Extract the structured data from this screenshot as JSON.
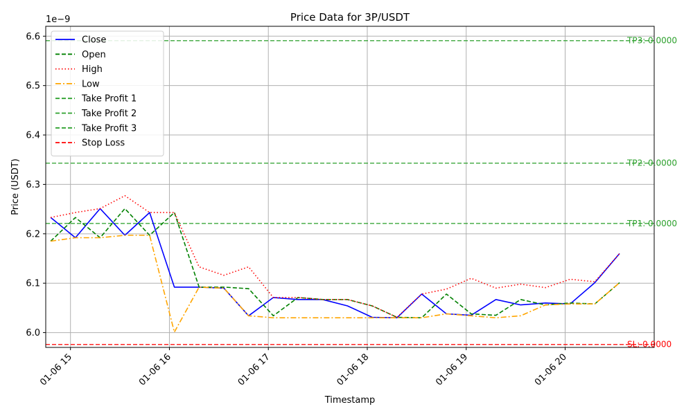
{
  "chart_data": {
    "type": "line",
    "title": "Price Data for 3P/USDT",
    "xlabel": "Timestamp",
    "ylabel": "Price (USDT)",
    "y_offset_label": "1e−9",
    "y_scale_exponent": -9,
    "ylim": [
      5.97,
      6.62
    ],
    "xlim": [
      "01-06 14:45",
      "01-06 20:54"
    ],
    "grid": true,
    "legend_position": "upper-left",
    "x_tick_labels": [
      "01-06 15",
      "01-06 16",
      "01-06 17",
      "01-06 18",
      "01-06 19",
      "01-06 20"
    ],
    "y_ticks": [
      6.0,
      6.1,
      6.2,
      6.3,
      6.4,
      6.5,
      6.6
    ],
    "y_tick_labels": [
      "6.0",
      "6.1",
      "6.2",
      "6.3",
      "6.4",
      "6.5",
      "6.6"
    ],
    "x": [
      "01-06 14:48",
      "01-06 15:03",
      "01-06 15:18",
      "01-06 15:33",
      "01-06 15:48",
      "01-06 16:03",
      "01-06 16:18",
      "01-06 16:33",
      "01-06 16:48",
      "01-06 17:03",
      "01-06 17:18",
      "01-06 17:33",
      "01-06 17:48",
      "01-06 18:03",
      "01-06 18:18",
      "01-06 18:33",
      "01-06 18:48",
      "01-06 19:03",
      "01-06 19:18",
      "01-06 19:33",
      "01-06 19:48",
      "01-06 20:03",
      "01-06 20:18",
      "01-06 20:33"
    ],
    "series": [
      {
        "name": "Close",
        "color": "#0000ff",
        "dash": "solid",
        "values": [
          6.233,
          6.192,
          6.251,
          6.197,
          6.243,
          6.092,
          6.092,
          6.09,
          6.034,
          6.071,
          6.067,
          6.067,
          6.054,
          6.031,
          6.03,
          6.078,
          6.038,
          6.035,
          6.067,
          6.056,
          6.06,
          6.058,
          6.101,
          6.16
        ]
      },
      {
        "name": "Open",
        "color": "#008000",
        "dash": "dashed",
        "values": [
          6.185,
          6.233,
          6.192,
          6.251,
          6.197,
          6.243,
          6.092,
          6.092,
          6.089,
          6.034,
          6.071,
          6.067,
          6.067,
          6.054,
          6.031,
          6.03,
          6.078,
          6.038,
          6.035,
          6.067,
          6.056,
          6.06,
          6.058,
          6.101
        ]
      },
      {
        "name": "High",
        "color": "#ff0000",
        "dash": "dotted",
        "values": [
          6.233,
          6.243,
          6.251,
          6.277,
          6.243,
          6.243,
          6.133,
          6.116,
          6.133,
          6.071,
          6.071,
          6.067,
          6.067,
          6.054,
          6.031,
          6.078,
          6.088,
          6.11,
          6.09,
          6.098,
          6.091,
          6.108,
          6.103,
          6.16
        ]
      },
      {
        "name": "Low",
        "color": "#ffa500",
        "dash": "dashdot",
        "values": [
          6.185,
          6.192,
          6.192,
          6.197,
          6.197,
          6.001,
          6.092,
          6.09,
          6.034,
          6.03,
          6.03,
          6.03,
          6.03,
          6.03,
          6.03,
          6.03,
          6.038,
          6.034,
          6.03,
          6.034,
          6.056,
          6.058,
          6.058,
          6.101
        ]
      }
    ],
    "hlines": [
      {
        "name": "Take Profit 1",
        "value": 6.221,
        "color": "#2ca02c",
        "label": "TP1: 0.0000"
      },
      {
        "name": "Take Profit 2",
        "value": 6.343,
        "color": "#2ca02c",
        "label": "TP2: 0.0000"
      },
      {
        "name": "Take Profit 3",
        "value": 6.591,
        "color": "#2ca02c",
        "label": "TP3: 0.0000"
      },
      {
        "name": "Stop Loss",
        "value": 5.976,
        "color": "#ff0000",
        "label": "SL: 0.0000"
      }
    ],
    "legend": [
      {
        "label": "Close",
        "color": "#0000ff",
        "dash": "solid"
      },
      {
        "label": "Open",
        "color": "#008000",
        "dash": "dashed"
      },
      {
        "label": "High",
        "color": "#ff0000",
        "dash": "dotted"
      },
      {
        "label": "Low",
        "color": "#ffa500",
        "dash": "dashdot"
      },
      {
        "label": "Take Profit 1",
        "color": "#2ca02c",
        "dash": "dashed"
      },
      {
        "label": "Take Profit 2",
        "color": "#2ca02c",
        "dash": "dashed"
      },
      {
        "label": "Take Profit 3",
        "color": "#2ca02c",
        "dash": "dashed"
      },
      {
        "label": "Stop Loss",
        "color": "#ff0000",
        "dash": "dashed"
      }
    ]
  }
}
